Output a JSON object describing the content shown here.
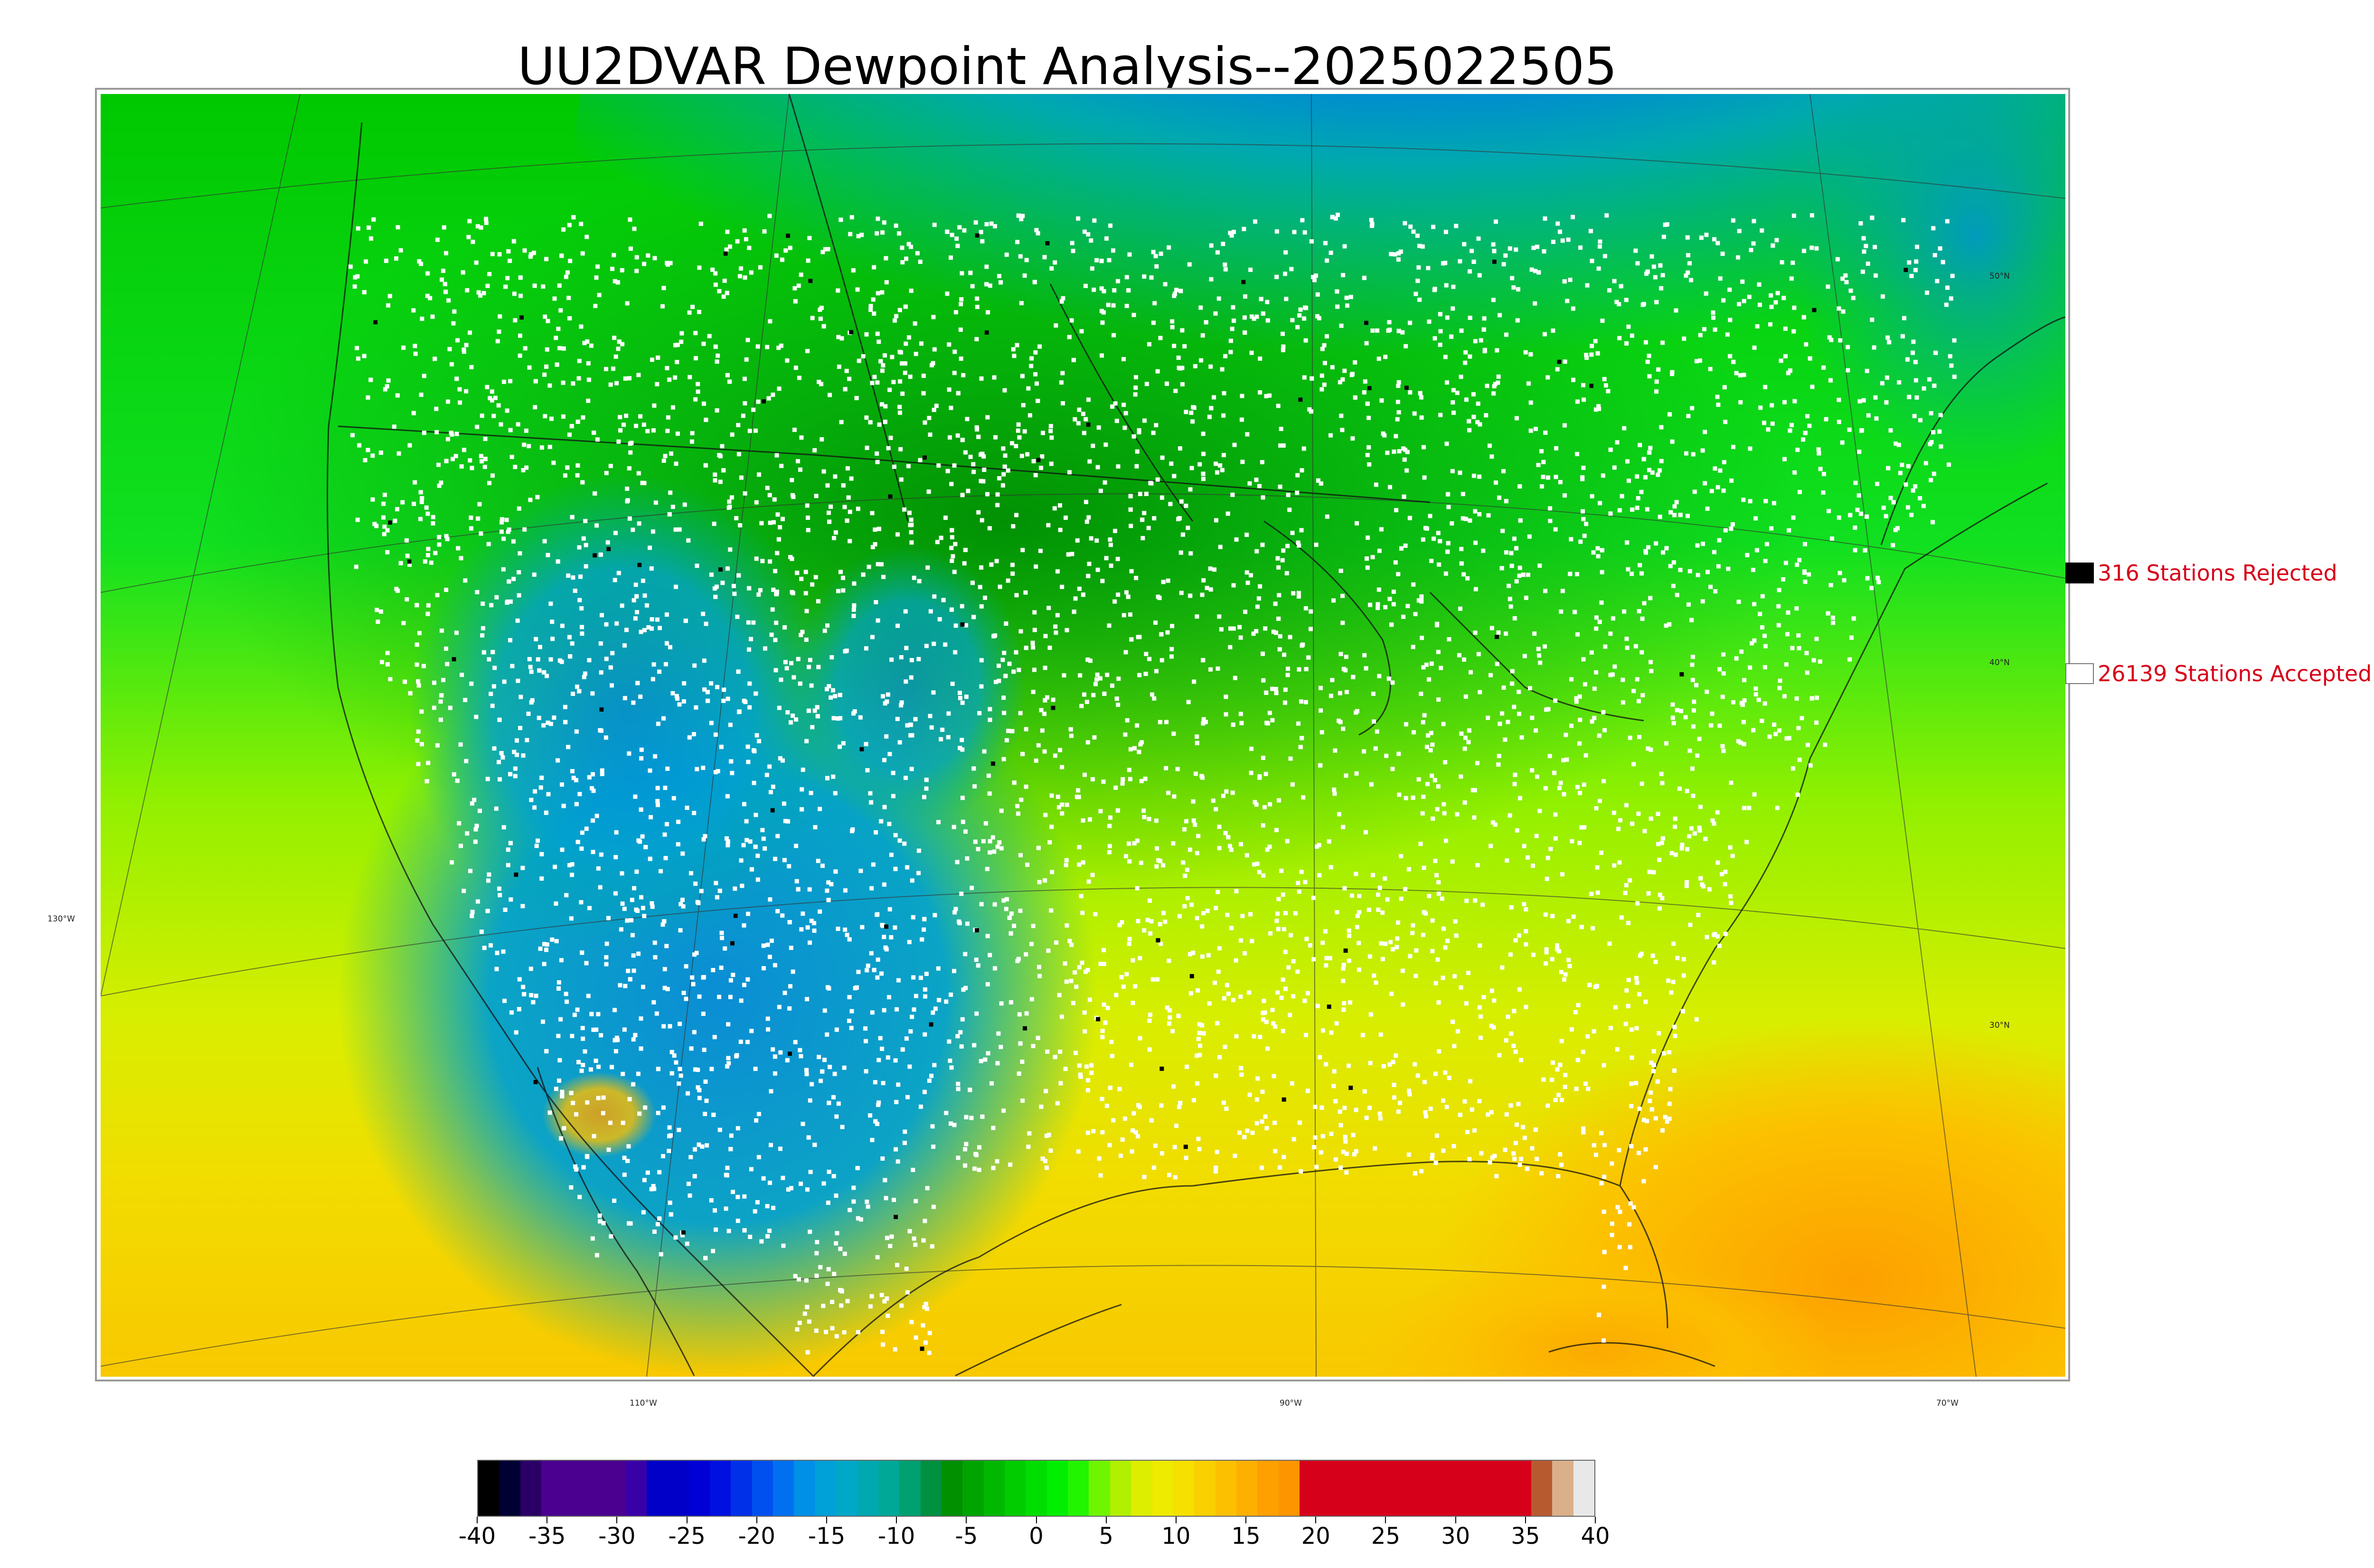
{
  "title": "UU2DVAR Dewpoint Analysis--2025022505",
  "legend": {
    "rejected": {
      "label": "316 Stations Rejected",
      "swatch_color": "#000000"
    },
    "accepted": {
      "label": "26139 Stations Accepted",
      "swatch_color": "#ffffff"
    },
    "text_color": "#d7001a"
  },
  "graticule_labels": {
    "lat": [
      "50°N",
      "40°N",
      "30°N"
    ],
    "lon": [
      "130°W",
      "110°W",
      "90°W",
      "70°W"
    ]
  },
  "colorbar": {
    "ticks": [
      "-40",
      "-35",
      "-30",
      "-25",
      "-20",
      "-15",
      "-10",
      "-5",
      "0",
      "5",
      "10",
      "15",
      "20",
      "25",
      "30",
      "35",
      "40"
    ],
    "colors": [
      "#000000",
      "#000033",
      "#2a0066",
      "#4b0090",
      "#4b0090",
      "#4b0090",
      "#4b0090",
      "#3a00a8",
      "#0000c8",
      "#0000c8",
      "#0000d6",
      "#0010e0",
      "#0030e8",
      "#0050ef",
      "#0070f0",
      "#0090e8",
      "#00a0d8",
      "#00a8c8",
      "#00a8b0",
      "#00a898",
      "#00a070",
      "#009040",
      "#009000",
      "#00a400",
      "#00b800",
      "#00cc00",
      "#00dd00",
      "#00ee00",
      "#22f500",
      "#70f500",
      "#b0f000",
      "#ddee00",
      "#eeea00",
      "#f5e000",
      "#fad000",
      "#fcc000",
      "#fdb000",
      "#fda000",
      "#fd9500",
      "#d7001a",
      "#d7001a",
      "#d7001a",
      "#d7001a",
      "#d7001a",
      "#d7001a",
      "#d7001a",
      "#d7001a",
      "#d7001a",
      "#d7001a",
      "#d7001a",
      "#b85a30",
      "#dab08a",
      "#e8e8e8"
    ]
  }
}
